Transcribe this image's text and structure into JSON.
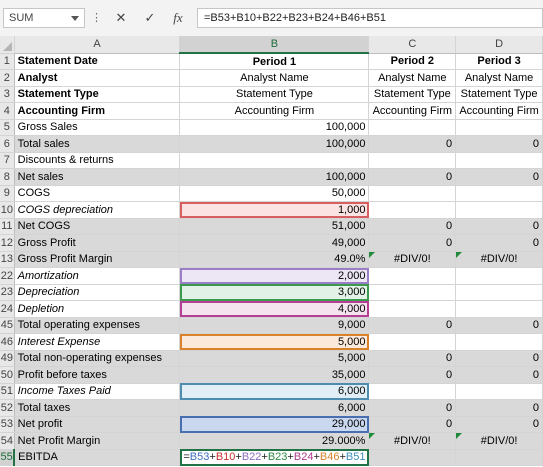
{
  "formula_bar": {
    "name_box": "SUM",
    "cancel_icon": "✕",
    "enter_icon": "✓",
    "fx_icon": "fx",
    "formula": "=B53+B10+B22+B23+B24+B46+B51"
  },
  "columns": [
    "A",
    "B",
    "C",
    "D"
  ],
  "selected_column": "B",
  "rows": [
    {
      "n": "1",
      "a": "Statement Date",
      "b": "Period 1",
      "c": "Period 2",
      "d": "Period 3",
      "style": "header"
    },
    {
      "n": "2",
      "a": "Analyst",
      "b": "Analyst Name",
      "c": "Analyst Name",
      "d": "Analyst Name",
      "style": "header"
    },
    {
      "n": "3",
      "a": "Statement Type",
      "b": "Statement Type",
      "c": "Statement Type",
      "d": "Statement Type",
      "style": "header"
    },
    {
      "n": "4",
      "a": "Accounting Firm",
      "b": "Accounting Firm",
      "c": "Accounting Firm",
      "d": "Accounting Firm",
      "style": "header"
    },
    {
      "n": "5",
      "a": "Gross Sales",
      "b": "100,000",
      "c": "",
      "d": ""
    },
    {
      "n": "6",
      "a": "Total sales",
      "b": "100,000",
      "c": "0",
      "d": "0",
      "shaded": true
    },
    {
      "n": "7",
      "a": "Discounts & returns",
      "b": "",
      "c": "",
      "d": ""
    },
    {
      "n": "8",
      "a": "Net sales",
      "b": "100,000",
      "c": "0",
      "d": "0",
      "shaded": true
    },
    {
      "n": "9",
      "a": "COGS",
      "b": "50,000",
      "c": "",
      "d": ""
    },
    {
      "n": "10",
      "a": "COGS depreciation",
      "b": "1,000",
      "c": "",
      "d": "",
      "italic": true,
      "hl": "red"
    },
    {
      "n": "11",
      "a": "Net COGS",
      "b": "51,000",
      "c": "0",
      "d": "0",
      "shaded": true
    },
    {
      "n": "12",
      "a": "Gross Profit",
      "b": "49,000",
      "c": "0",
      "d": "0",
      "shaded": true
    },
    {
      "n": "13",
      "a": "Gross Profit Margin",
      "b": "49.0%",
      "c": "#DIV/0!",
      "d": "#DIV/0!",
      "shaded": true,
      "pct": true
    },
    {
      "n": "22",
      "a": "Amortization",
      "b": "2,000",
      "c": "",
      "d": "",
      "italic": true,
      "hl": "purple"
    },
    {
      "n": "23",
      "a": "Depreciation",
      "b": "3,000",
      "c": "",
      "d": "",
      "italic": true,
      "hl": "green"
    },
    {
      "n": "24",
      "a": "Depletion",
      "b": "4,000",
      "c": "",
      "d": "",
      "italic": true,
      "hl": "magenta"
    },
    {
      "n": "45",
      "a": "Total operating expenses",
      "b": "9,000",
      "c": "0",
      "d": "0",
      "shaded": true
    },
    {
      "n": "46",
      "a": "Interest Expense",
      "b": "5,000",
      "c": "",
      "d": "",
      "italic": true,
      "hl": "orange"
    },
    {
      "n": "49",
      "a": "Total non-operating expenses",
      "b": "5,000",
      "c": "0",
      "d": "0",
      "shaded": true
    },
    {
      "n": "50",
      "a": "Profit before taxes",
      "b": "35,000",
      "c": "0",
      "d": "0",
      "shaded": true
    },
    {
      "n": "51",
      "a": "Income Taxes Paid",
      "b": "6,000",
      "c": "",
      "d": "",
      "italic": true,
      "hl": "teal"
    },
    {
      "n": "52",
      "a": "Total taxes",
      "b": "6,000",
      "c": "0",
      "d": "0",
      "shaded": true
    },
    {
      "n": "53",
      "a": "Net profit",
      "b": "29,000",
      "c": "0",
      "d": "0",
      "shaded": true,
      "hl": "blue"
    },
    {
      "n": "54",
      "a": "Net Profit Margin",
      "b": "29.000%",
      "c": "#DIV/0!",
      "d": "#DIV/0!",
      "shaded": true,
      "pct": true
    },
    {
      "n": "55",
      "a": "EBITDA",
      "b": "",
      "c": "",
      "d": "",
      "shaded": true,
      "editing": true
    }
  ],
  "editing_formula_parts": [
    {
      "t": "=",
      "cls": "f-op"
    },
    {
      "t": "B53",
      "cls": "f-b53"
    },
    {
      "t": "+",
      "cls": "f-op"
    },
    {
      "t": "B10",
      "cls": "f-b10"
    },
    {
      "t": "+",
      "cls": "f-op"
    },
    {
      "t": "B22",
      "cls": "f-b22"
    },
    {
      "t": "+",
      "cls": "f-op"
    },
    {
      "t": "B23",
      "cls": "f-b23"
    },
    {
      "t": "+",
      "cls": "f-op"
    },
    {
      "t": "B24",
      "cls": "f-b24"
    },
    {
      "t": "+",
      "cls": "f-op"
    },
    {
      "t": "B46",
      "cls": "f-b46"
    },
    {
      "t": "+",
      "cls": "f-op"
    },
    {
      "t": "B51",
      "cls": "f-b51"
    }
  ]
}
